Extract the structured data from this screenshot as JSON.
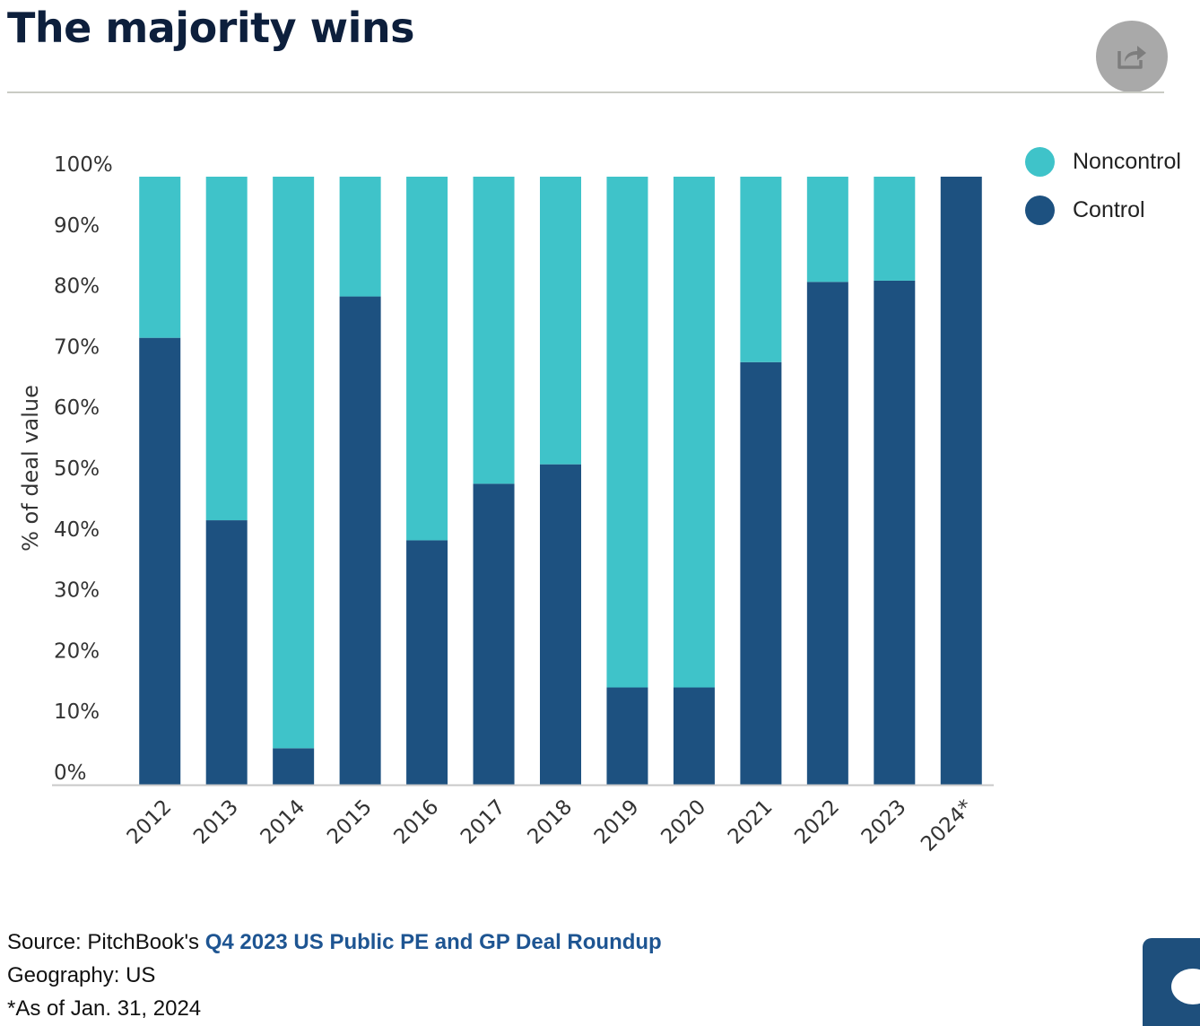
{
  "title": "The majority wins",
  "icons": {
    "share": "share-icon",
    "chat": "chat-icon"
  },
  "colors": {
    "control": "#1d5180",
    "noncontrol": "#3fc3c9",
    "title": "#0d1f3c",
    "link": "#1e5592"
  },
  "chart_data": {
    "type": "bar",
    "stacked": true,
    "categories": [
      "2012",
      "2013",
      "2014",
      "2015",
      "2016",
      "2017",
      "2018",
      "2019",
      "2020",
      "2021",
      "2022",
      "2023",
      "2024*"
    ],
    "series": [
      {
        "name": "Control",
        "color": "#1d5180",
        "values": [
          73.5,
          43.5,
          6.0,
          80.3,
          40.2,
          49.5,
          52.7,
          16.0,
          16.0,
          69.5,
          82.7,
          82.9,
          100.0
        ]
      },
      {
        "name": "Noncontrol",
        "color": "#3fc3c9",
        "values": [
          26.5,
          56.5,
          94.0,
          19.7,
          59.8,
          50.5,
          47.3,
          84.0,
          84.0,
          30.5,
          17.3,
          17.1,
          0.0
        ]
      }
    ],
    "yticks": [
      "0%",
      "10%",
      "20%",
      "30%",
      "40%",
      "50%",
      "60%",
      "70%",
      "80%",
      "90%",
      "100%"
    ],
    "ylabel": "% of deal value",
    "xlabel": "",
    "ylim": [
      0,
      100
    ],
    "grid": false,
    "legend_placement": "top-right",
    "legend": [
      "Noncontrol",
      "Control"
    ]
  },
  "notes": {
    "source_prefix": "Source: PitchBook's ",
    "source_link": "Q4 2023 US Public PE and GP Deal Roundup",
    "geography": "Geography: US",
    "as_of": "*As of Jan. 31, 2024"
  }
}
